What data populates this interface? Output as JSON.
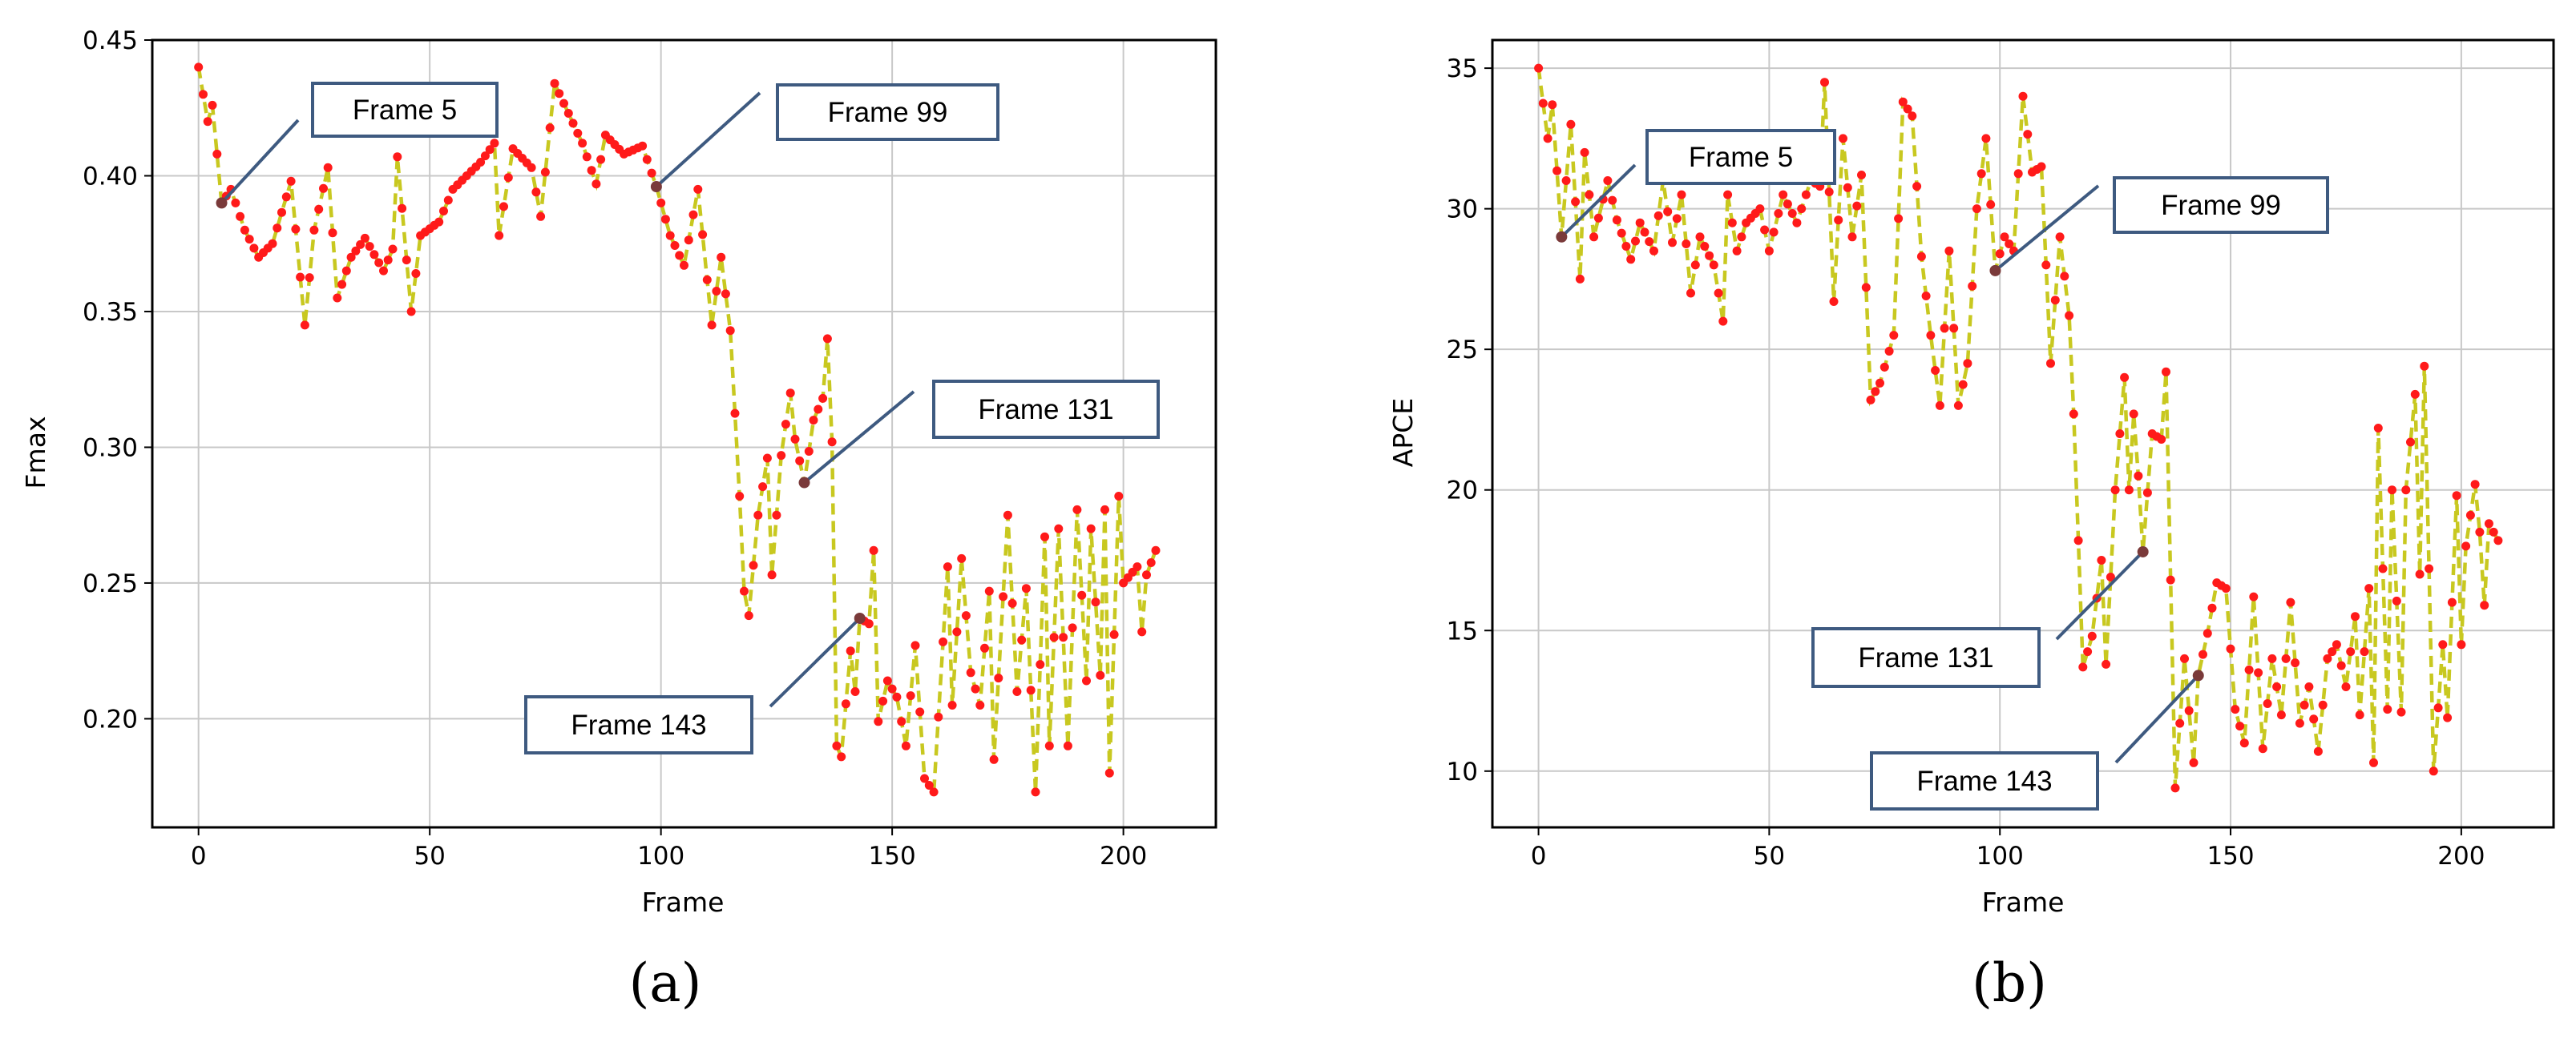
{
  "charts": [
    {
      "type": "line",
      "caption": "(a)",
      "xlabel": "Frame",
      "ylabel": "Fmax",
      "xlim": [
        -10,
        220
      ],
      "ylim": [
        0.16,
        0.45
      ],
      "xticks": [
        0,
        50,
        100,
        150,
        200
      ],
      "yticks": [
        0.2,
        0.25,
        0.3,
        0.35,
        0.4,
        0.45
      ],
      "ytick_labels": [
        "0.20",
        "0.25",
        "0.30",
        "0.35",
        "0.40",
        "0.45"
      ],
      "grid": true,
      "line_color": "#c8c820",
      "marker_color": "#ff1a1a",
      "highlight_color": "#7a3a3a",
      "keypoints": [
        [
          0,
          0.44
        ],
        [
          2,
          0.42
        ],
        [
          3,
          0.426
        ],
        [
          5,
          0.39
        ],
        [
          7,
          0.395
        ],
        [
          10,
          0.38
        ],
        [
          13,
          0.37
        ],
        [
          16,
          0.375
        ],
        [
          20,
          0.398
        ],
        [
          23,
          0.345
        ],
        [
          25,
          0.38
        ],
        [
          28,
          0.403
        ],
        [
          30,
          0.355
        ],
        [
          33,
          0.37
        ],
        [
          36,
          0.377
        ],
        [
          40,
          0.365
        ],
        [
          42,
          0.373
        ],
        [
          43,
          0.407
        ],
        [
          46,
          0.35
        ],
        [
          48,
          0.378
        ],
        [
          52,
          0.383
        ],
        [
          55,
          0.395
        ],
        [
          58,
          0.4
        ],
        [
          61,
          0.405
        ],
        [
          64,
          0.412
        ],
        [
          65,
          0.378
        ],
        [
          68,
          0.41
        ],
        [
          72,
          0.403
        ],
        [
          74,
          0.385
        ],
        [
          77,
          0.434
        ],
        [
          80,
          0.423
        ],
        [
          83,
          0.412
        ],
        [
          86,
          0.397
        ],
        [
          88,
          0.415
        ],
        [
          92,
          0.408
        ],
        [
          96,
          0.411
        ],
        [
          99,
          0.396
        ],
        [
          102,
          0.378
        ],
        [
          105,
          0.367
        ],
        [
          108,
          0.395
        ],
        [
          111,
          0.345
        ],
        [
          113,
          0.37
        ],
        [
          115,
          0.343
        ],
        [
          117,
          0.282
        ],
        [
          118,
          0.247
        ],
        [
          119,
          0.238
        ],
        [
          121,
          0.275
        ],
        [
          123,
          0.296
        ],
        [
          124,
          0.253
        ],
        [
          126,
          0.297
        ],
        [
          128,
          0.32
        ],
        [
          129,
          0.303
        ],
        [
          131,
          0.287
        ],
        [
          133,
          0.31
        ],
        [
          135,
          0.318
        ],
        [
          136,
          0.34
        ],
        [
          137,
          0.302
        ],
        [
          138,
          0.19
        ],
        [
          139,
          0.186
        ],
        [
          141,
          0.225
        ],
        [
          142,
          0.21
        ],
        [
          143,
          0.237
        ],
        [
          145,
          0.235
        ],
        [
          146,
          0.262
        ],
        [
          147,
          0.199
        ],
        [
          149,
          0.214
        ],
        [
          151,
          0.208
        ],
        [
          153,
          0.19
        ],
        [
          155,
          0.227
        ],
        [
          157,
          0.178
        ],
        [
          159,
          0.173
        ],
        [
          162,
          0.256
        ],
        [
          163,
          0.205
        ],
        [
          165,
          0.259
        ],
        [
          167,
          0.217
        ],
        [
          169,
          0.205
        ],
        [
          171,
          0.247
        ],
        [
          172,
          0.185
        ],
        [
          175,
          0.275
        ],
        [
          177,
          0.21
        ],
        [
          179,
          0.248
        ],
        [
          181,
          0.173
        ],
        [
          183,
          0.267
        ],
        [
          184,
          0.19
        ],
        [
          186,
          0.27
        ],
        [
          188,
          0.19
        ],
        [
          190,
          0.277
        ],
        [
          192,
          0.214
        ],
        [
          193,
          0.27
        ],
        [
          195,
          0.216
        ],
        [
          196,
          0.277
        ],
        [
          197,
          0.18
        ],
        [
          199,
          0.282
        ],
        [
          200,
          0.25
        ],
        [
          203,
          0.256
        ],
        [
          204,
          0.232
        ],
        [
          205,
          0.253
        ],
        [
          207,
          0.262
        ]
      ],
      "callouts": [
        {
          "label": "Frame 5",
          "frame": 5
        },
        {
          "label": "Frame 99",
          "frame": 99
        },
        {
          "label": "Frame 131",
          "frame": 131
        },
        {
          "label": "Frame 143",
          "frame": 143
        }
      ]
    },
    {
      "type": "line",
      "caption": "(b)",
      "xlabel": "Frame",
      "ylabel": "APCE",
      "xlim": [
        -10,
        220
      ],
      "ylim": [
        8,
        36
      ],
      "xticks": [
        0,
        50,
        100,
        150,
        200
      ],
      "yticks": [
        10,
        15,
        20,
        25,
        30,
        35
      ],
      "ytick_labels": [
        "10",
        "15",
        "20",
        "25",
        "30",
        "35"
      ],
      "grid": true,
      "line_color": "#c8c820",
      "marker_color": "#ff1a1a",
      "highlight_color": "#7a3a3a",
      "keypoints": [
        [
          0,
          35
        ],
        [
          2,
          32.5
        ],
        [
          3,
          33.7
        ],
        [
          5,
          29
        ],
        [
          7,
          33
        ],
        [
          9,
          27.5
        ],
        [
          10,
          32
        ],
        [
          12,
          29
        ],
        [
          15,
          31
        ],
        [
          17,
          29.6
        ],
        [
          20,
          28.2
        ],
        [
          22,
          29.5
        ],
        [
          25,
          28.5
        ],
        [
          27,
          31
        ],
        [
          29,
          28.8
        ],
        [
          31,
          30.5
        ],
        [
          33,
          27
        ],
        [
          35,
          29
        ],
        [
          38,
          28
        ],
        [
          40,
          26
        ],
        [
          41,
          30.5
        ],
        [
          43,
          28.5
        ],
        [
          45,
          29.5
        ],
        [
          48,
          30
        ],
        [
          50,
          28.5
        ],
        [
          53,
          30.5
        ],
        [
          56,
          29.5
        ],
        [
          59,
          31
        ],
        [
          61,
          30.8
        ],
        [
          62,
          34.5
        ],
        [
          64,
          26.7
        ],
        [
          66,
          32.5
        ],
        [
          68,
          29
        ],
        [
          70,
          31.2
        ],
        [
          72,
          23.2
        ],
        [
          74,
          23.8
        ],
        [
          77,
          25.5
        ],
        [
          79,
          33.8
        ],
        [
          81,
          33.3
        ],
        [
          83,
          28.3
        ],
        [
          85,
          25.5
        ],
        [
          87,
          23
        ],
        [
          89,
          28.5
        ],
        [
          91,
          23
        ],
        [
          93,
          24.5
        ],
        [
          95,
          30
        ],
        [
          97,
          32.5
        ],
        [
          99,
          27.8
        ],
        [
          101,
          29
        ],
        [
          103,
          28.5
        ],
        [
          105,
          34
        ],
        [
          107,
          31.3
        ],
        [
          109,
          31.5
        ],
        [
          111,
          24.5
        ],
        [
          113,
          29
        ],
        [
          115,
          26.2
        ],
        [
          116,
          22.7
        ],
        [
          118,
          13.7
        ],
        [
          120,
          14.8
        ],
        [
          122,
          17.5
        ],
        [
          123,
          13.8
        ],
        [
          125,
          20
        ],
        [
          127,
          24
        ],
        [
          128,
          20
        ],
        [
          129,
          22.7
        ],
        [
          130,
          20.5
        ],
        [
          131,
          17.8
        ],
        [
          133,
          22
        ],
        [
          135,
          21.8
        ],
        [
          136,
          24.2
        ],
        [
          138,
          9.4
        ],
        [
          140,
          14
        ],
        [
          142,
          10.3
        ],
        [
          143,
          13.4
        ],
        [
          145,
          14.9
        ],
        [
          147,
          16.7
        ],
        [
          149,
          16.5
        ],
        [
          151,
          12.2
        ],
        [
          153,
          11
        ],
        [
          155,
          16.2
        ],
        [
          157,
          10.8
        ],
        [
          159,
          14
        ],
        [
          161,
          12
        ],
        [
          163,
          16
        ],
        [
          165,
          11.7
        ],
        [
          167,
          13
        ],
        [
          169,
          10.7
        ],
        [
          171,
          14
        ],
        [
          173,
          14.5
        ],
        [
          175,
          13
        ],
        [
          177,
          15.5
        ],
        [
          178,
          12
        ],
        [
          180,
          16.5
        ],
        [
          181,
          10.3
        ],
        [
          182,
          22.2
        ],
        [
          184,
          12.2
        ],
        [
          185,
          20
        ],
        [
          187,
          12.1
        ],
        [
          188,
          20
        ],
        [
          190,
          23.4
        ],
        [
          191,
          17
        ],
        [
          192,
          24.4
        ],
        [
          194,
          10
        ],
        [
          196,
          14.5
        ],
        [
          197,
          11.9
        ],
        [
          198,
          16
        ],
        [
          199,
          19.8
        ],
        [
          200,
          14.5
        ],
        [
          201,
          18
        ],
        [
          203,
          20.2
        ],
        [
          204,
          18.5
        ],
        [
          205,
          15.9
        ],
        [
          206,
          18.8
        ],
        [
          208,
          18.2
        ]
      ],
      "callouts": [
        {
          "label": "Frame 5",
          "frame": 5
        },
        {
          "label": "Frame 99",
          "frame": 99
        },
        {
          "label": "Frame 131",
          "frame": 131
        },
        {
          "label": "Frame 143",
          "frame": 143
        }
      ]
    }
  ]
}
